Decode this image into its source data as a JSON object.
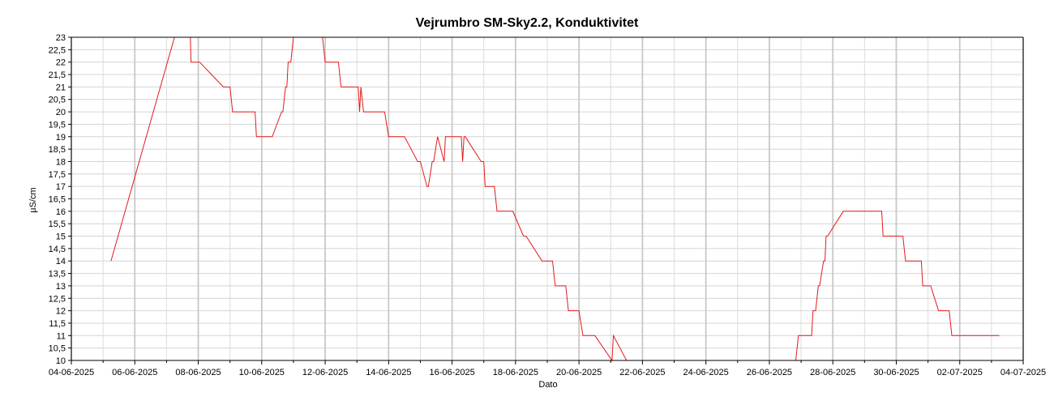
{
  "chart_data": {
    "type": "line",
    "title": "Vejrumbro SM-Sky2.2, Konduktivitet",
    "xlabel": "Dato",
    "ylabel": "µS/cm",
    "xlim": [
      "2025-06-04",
      "2025-07-04"
    ],
    "ylim": [
      10,
      23
    ],
    "grid": true,
    "x_tick_labels": [
      "04-06-2025",
      "06-06-2025",
      "08-06-2025",
      "10-06-2025",
      "12-06-2025",
      "14-06-2025",
      "16-06-2025",
      "18-06-2025",
      "20-06-2025",
      "22-06-2025",
      "24-06-2025",
      "26-06-2025",
      "28-06-2025",
      "30-06-2025",
      "02-07-2025",
      "04-07-2025"
    ],
    "y_tick_labels": [
      "10",
      "10,5",
      "11",
      "11,5",
      "12",
      "12,5",
      "13",
      "13,5",
      "14",
      "14,5",
      "15",
      "15,5",
      "16",
      "16,5",
      "17",
      "17,5",
      "18",
      "18,5",
      "19",
      "19,5",
      "20",
      "20,5",
      "21",
      "21,5",
      "22",
      "22,5",
      "23"
    ],
    "line_color": "#e31a1c",
    "series": [
      {
        "x": [
          "2025-06-05T06:00",
          "2025-06-07T06:00",
          "2025-06-07T12:00",
          "2025-06-07T18:00",
          "2025-06-07T18:30",
          "2025-06-08T01:00",
          "2025-06-08T19:00",
          "2025-06-09T00:00",
          "2025-06-09T02:00",
          "2025-06-09T19:00",
          "2025-06-09T20:00",
          "2025-06-10T08:00",
          "2025-06-10T15:00",
          "2025-06-10T16:00",
          "2025-06-10T18:00",
          "2025-06-10T19:00",
          "2025-06-10T20:00",
          "2025-06-10T22:00",
          "2025-06-11T00:00",
          "2025-06-11T01:00",
          "2025-06-11T22:00",
          "2025-06-12T00:00",
          "2025-06-12T10:00",
          "2025-06-12T12:00",
          "2025-06-13T01:00",
          "2025-06-13T02:00",
          "2025-06-13T03:00",
          "2025-06-13T05:00",
          "2025-06-13T07:00",
          "2025-06-13T09:00",
          "2025-06-13T21:00",
          "2025-06-14T00:00",
          "2025-06-14T09:00",
          "2025-06-14T12:00",
          "2025-06-14T22:00",
          "2025-06-15T00:00",
          "2025-06-15T05:00",
          "2025-06-15T06:00",
          "2025-06-15T09:00",
          "2025-06-15T10:00",
          "2025-06-15T13:00",
          "2025-06-15T18:00",
          "2025-06-15T19:00",
          "2025-06-15T21:00",
          "2025-06-16T07:00",
          "2025-06-16T08:00",
          "2025-06-16T09:00",
          "2025-06-16T10:00",
          "2025-06-16T22:00",
          "2025-06-16T23:00",
          "2025-06-17T00:00",
          "2025-06-17T01:00",
          "2025-06-17T08:00",
          "2025-06-17T10:00",
          "2025-06-17T22:00",
          "2025-06-18T06:00",
          "2025-06-18T08:00",
          "2025-06-18T20:00",
          "2025-06-19T04:00",
          "2025-06-19T06:00",
          "2025-06-19T14:00",
          "2025-06-19T16:00",
          "2025-06-20T00:00",
          "2025-06-20T03:00",
          "2025-06-20T12:00",
          "2025-06-21T01:00",
          "2025-06-21T02:00",
          "2025-06-21T12:00",
          "2025-06-22T00:00",
          "2025-06-22T10:00",
          "2025-06-22T11:00",
          "2025-06-22T12:00",
          "2025-06-22T13:00",
          "2025-06-23T00:00",
          "2025-06-26T20:00",
          "2025-06-26T22:00",
          "2025-06-27T08:00",
          "2025-06-27T09:00",
          "2025-06-27T11:00",
          "2025-06-27T13:00",
          "2025-06-27T14:00",
          "2025-06-27T17:00",
          "2025-06-27T18:00",
          "2025-06-27T19:00",
          "2025-06-27T20:00",
          "2025-06-28T08:00",
          "2025-06-28T09:00",
          "2025-06-29T13:00",
          "2025-06-29T14:00",
          "2025-06-30T05:00",
          "2025-06-30T07:00",
          "2025-06-30T19:00",
          "2025-06-30T20:00",
          "2025-07-01T02:00",
          "2025-07-01T08:00",
          "2025-07-01T16:00",
          "2025-07-01T18:00",
          "2025-07-02T12:00",
          "2025-07-02T18:00",
          "2025-07-03T06:00"
        ],
        "y": [
          14,
          23,
          23,
          23,
          22,
          22,
          21,
          21,
          20,
          20,
          19,
          19,
          20,
          20,
          21,
          21,
          22,
          22,
          23,
          23,
          23,
          22,
          22,
          21,
          21,
          20,
          21,
          20,
          20,
          20,
          20,
          19,
          19,
          19,
          18,
          18,
          17,
          17,
          18,
          18,
          19,
          18,
          19,
          19,
          19,
          18,
          19,
          19,
          18,
          18,
          18,
          17,
          17,
          16,
          16,
          15,
          15,
          14,
          14,
          13,
          13,
          12,
          12,
          11,
          11,
          10,
          11,
          10,
          10,
          10,
          10,
          10,
          10,
          10,
          10,
          11,
          11,
          12,
          12,
          13,
          13,
          14,
          14,
          15,
          15,
          16,
          16,
          16,
          15,
          15,
          14,
          14,
          13,
          13,
          12,
          12,
          11,
          11,
          11,
          11
        ],
        "name": ""
      }
    ]
  }
}
